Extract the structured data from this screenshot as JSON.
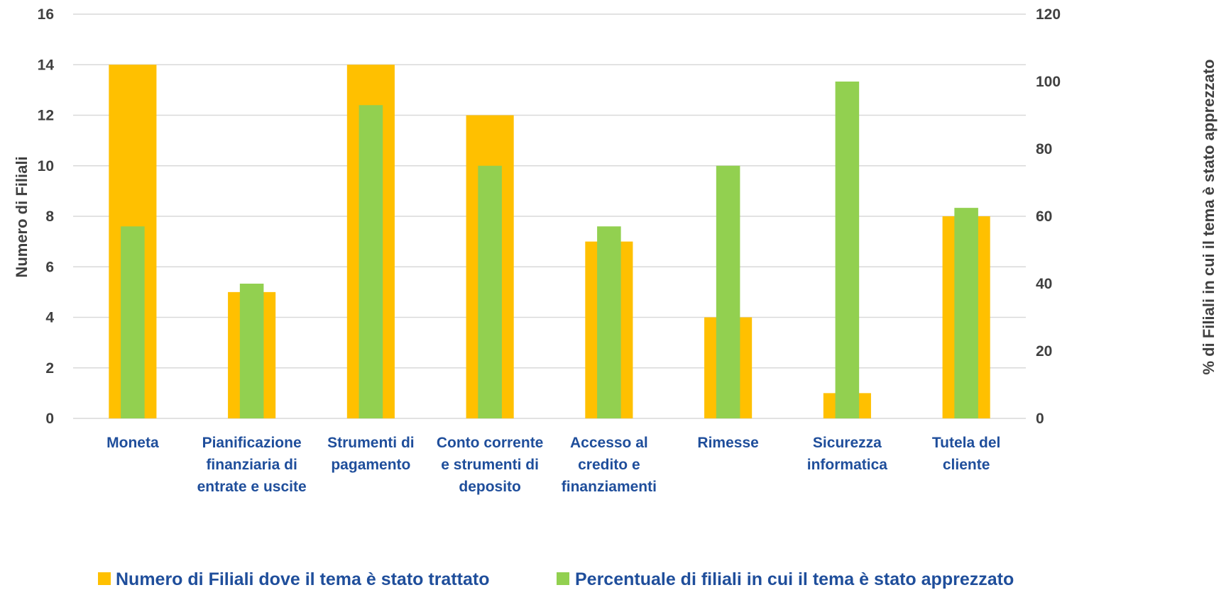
{
  "chart_data": {
    "type": "bar",
    "categories": [
      [
        "Moneta"
      ],
      [
        "Pianificazione",
        "finanziaria di",
        "entrate e uscite"
      ],
      [
        "Strumenti di",
        "pagamento"
      ],
      [
        "Conto corrente",
        "e strumenti di",
        "deposito"
      ],
      [
        "Accesso al",
        "credito e",
        "finanziamenti"
      ],
      [
        "Rimesse"
      ],
      [
        "Sicurezza",
        "informatica"
      ],
      [
        "Tutela del",
        "cliente"
      ]
    ],
    "series": [
      {
        "name": "Numero di Filiali dove il tema è stato trattato",
        "axis": "left",
        "color": "#FFC000",
        "values": [
          14,
          5,
          14,
          12,
          7,
          4,
          1,
          8
        ]
      },
      {
        "name": "Percentuale di filiali in cui il tema è stato apprezzato",
        "axis": "right",
        "color": "#92D050",
        "values": [
          57,
          40,
          93,
          75,
          57,
          75,
          100,
          62.5
        ]
      }
    ],
    "ylabel": "Numero di Filiali",
    "y2label": "% di Filiali in cui il tema è stato apprezzato",
    "ylim": [
      0,
      16
    ],
    "y2lim": [
      0,
      120
    ],
    "yticks": [
      0,
      2,
      4,
      6,
      8,
      10,
      12,
      14,
      16
    ],
    "y2ticks": [
      0,
      20,
      40,
      60,
      80,
      100,
      120
    ],
    "grid": true,
    "legend_position": "bottom"
  }
}
